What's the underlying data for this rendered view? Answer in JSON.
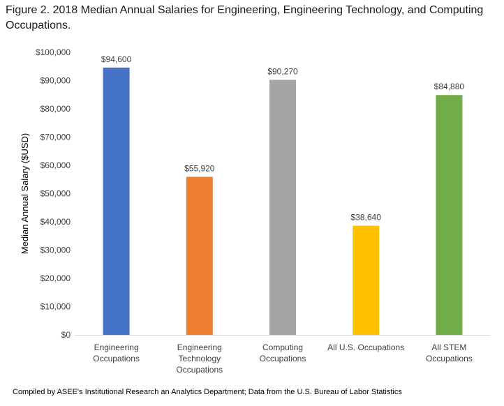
{
  "title": "Figure 2. 2018 Median Annual Salaries for Engineering, Engineering Technology, and Computing Occupations.",
  "footer": "Compiled by ASEE's Institutional Research an Analytics Department; Data from the U.S. Bureau of Labor Statistics",
  "chart_data": {
    "type": "bar",
    "title": "Figure 2. 2018 Median Annual Salaries for Engineering, Engineering Technology, and Computing Occupations.",
    "xlabel": "",
    "ylabel": "Median Annual Salary ($USD)",
    "ylim": [
      0,
      100000
    ],
    "yticks": [
      0,
      10000,
      20000,
      30000,
      40000,
      50000,
      60000,
      70000,
      80000,
      90000,
      100000
    ],
    "ytick_labels": [
      "$0",
      "$10,000",
      "$20,000",
      "$30,000",
      "$40,000",
      "$50,000",
      "$60,000",
      "$70,000",
      "$80,000",
      "$90,000",
      "$100,000"
    ],
    "categories": [
      [
        "Engineering",
        "Occupations"
      ],
      [
        "Engineering",
        "Technology",
        "Occupations"
      ],
      [
        "Computing",
        "Occupations"
      ],
      [
        "All U.S. Occupations"
      ],
      [
        "All STEM",
        "Occupations"
      ]
    ],
    "values": [
      94600,
      55920,
      90270,
      38640,
      84880
    ],
    "data_labels": [
      "$94,600",
      "$55,920",
      "$90,270",
      "$38,640",
      "$84,880"
    ],
    "colors": [
      "#4472c4",
      "#ed7d31",
      "#a5a5a5",
      "#ffc000",
      "#70ad47"
    ],
    "grid": false,
    "legend": "none"
  }
}
